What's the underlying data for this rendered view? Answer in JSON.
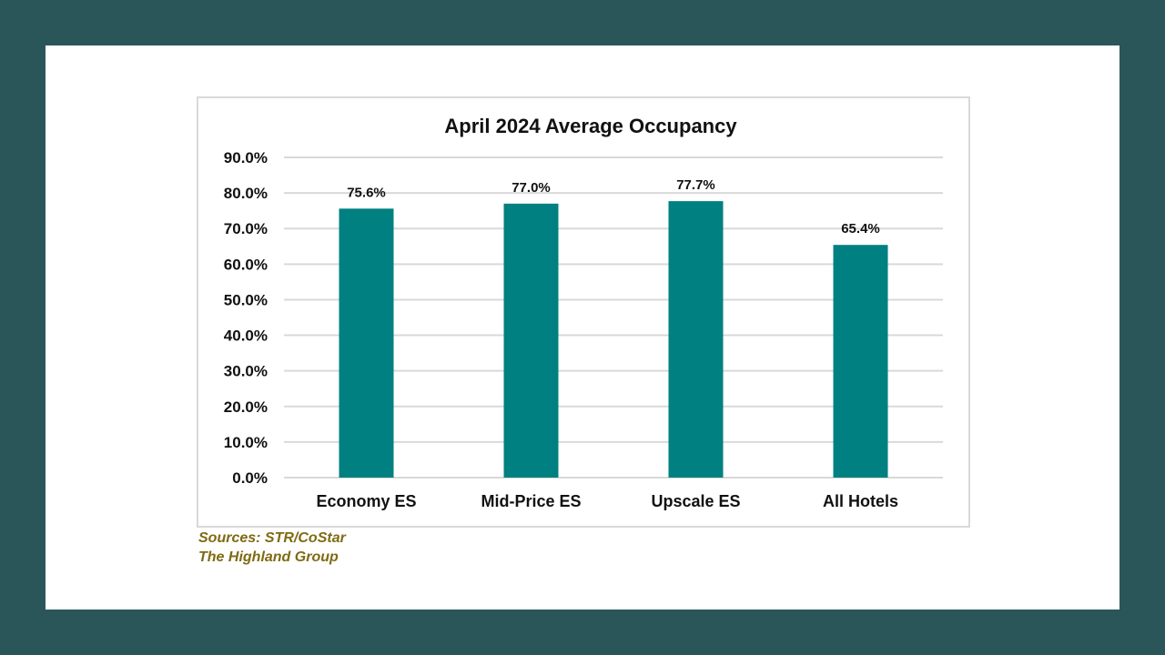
{
  "colors": {
    "background": "#2b5659",
    "bar": "#008080",
    "gridline": "#d9d9d9",
    "source_text": "#7f6a12"
  },
  "chart_data": {
    "type": "bar",
    "title": "April 2024 Average Occupancy",
    "xlabel": "",
    "ylabel": "",
    "categories": [
      "Economy ES",
      "Mid-Price ES",
      "Upscale ES",
      "All Hotels"
    ],
    "values": [
      75.6,
      77.0,
      77.7,
      65.4
    ],
    "data_labels": [
      "75.6%",
      "77.0%",
      "77.7%",
      "65.4%"
    ],
    "ylim": [
      0,
      90
    ],
    "yticks": [
      0,
      10,
      20,
      30,
      40,
      50,
      60,
      70,
      80,
      90
    ],
    "ytick_labels": [
      "0.0%",
      "10.0%",
      "20.0%",
      "30.0%",
      "40.0%",
      "50.0%",
      "60.0%",
      "70.0%",
      "80.0%",
      "90.0%"
    ],
    "grid": true,
    "legend": "none"
  },
  "sources": {
    "line1": "Sources: STR/CoStar",
    "line2": "The Highland Group"
  }
}
